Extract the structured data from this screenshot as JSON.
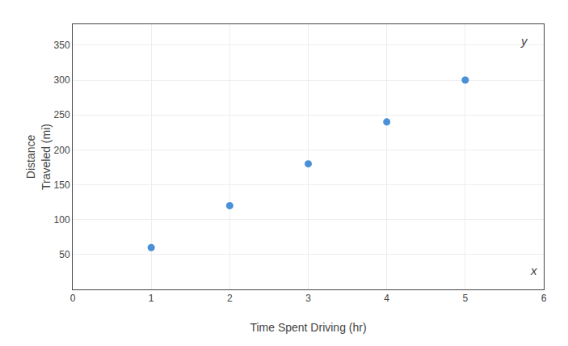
{
  "chart_data": {
    "type": "scatter",
    "x_label": "Time Spent Driving (hr)",
    "y_label": "Distance\nTraveled (mi)",
    "x": [
      1,
      2,
      3,
      4,
      5
    ],
    "values": [
      60,
      120,
      180,
      240,
      300
    ],
    "color": "#4a90d9",
    "xlim": [
      0,
      6
    ],
    "ylim": [
      0,
      380
    ],
    "xticks": [
      0,
      1,
      2,
      3,
      4,
      5,
      6
    ],
    "yticks": [
      50,
      100,
      150,
      200,
      250,
      300,
      350
    ],
    "grid": true,
    "annotations": [
      "y",
      "x"
    ]
  }
}
